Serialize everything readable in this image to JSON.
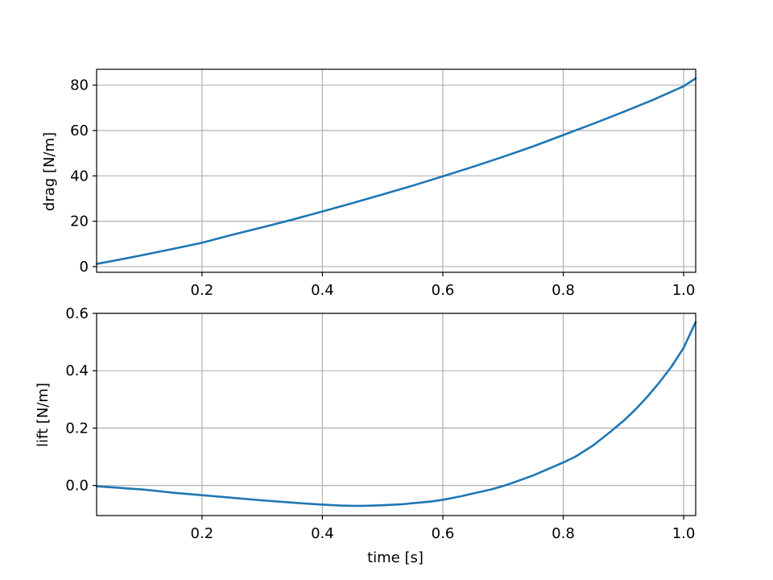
{
  "chart_data": [
    {
      "type": "line",
      "title": "",
      "xlabel": "",
      "ylabel": "drag [N/m]",
      "xlim": [
        0.025,
        1.02
      ],
      "ylim": [
        -2.5,
        87
      ],
      "grid": true,
      "xticks": [
        0.2,
        0.4,
        0.6,
        0.8,
        1.0
      ],
      "xtick_labels": [
        "0.2",
        "0.4",
        "0.6",
        "0.8",
        "1.0"
      ],
      "yticks": [
        0,
        20,
        40,
        60,
        80
      ],
      "ytick_labels": [
        "0",
        "20",
        "40",
        "60",
        "80"
      ],
      "series": [
        {
          "color": "#1f77b4",
          "x": [
            0.025,
            0.05,
            0.1,
            0.15,
            0.2,
            0.25,
            0.3,
            0.35,
            0.4,
            0.45,
            0.5,
            0.55,
            0.6,
            0.65,
            0.7,
            0.75,
            0.8,
            0.85,
            0.9,
            0.95,
            1.0,
            1.02
          ],
          "y": [
            1.2,
            2.4,
            5.0,
            7.7,
            10.5,
            14.0,
            17.3,
            20.7,
            24.3,
            28.0,
            31.8,
            35.7,
            39.8,
            44.0,
            48.4,
            53.0,
            58.0,
            63.0,
            68.2,
            73.6,
            79.5,
            83.0
          ]
        }
      ]
    },
    {
      "type": "line",
      "title": "",
      "xlabel": "time [s]",
      "ylabel": "lift [N/m]",
      "xlim": [
        0.025,
        1.02
      ],
      "ylim": [
        -0.105,
        0.6
      ],
      "grid": true,
      "xticks": [
        0.2,
        0.4,
        0.6,
        0.8,
        1.0
      ],
      "xtick_labels": [
        "0.2",
        "0.4",
        "0.6",
        "0.8",
        "1.0"
      ],
      "yticks": [
        0.0,
        0.2,
        0.4,
        0.6
      ],
      "ytick_labels": [
        "0.0",
        "0.2",
        "0.4",
        "0.6"
      ],
      "series": [
        {
          "color": "#1f77b4",
          "x": [
            0.025,
            0.04,
            0.06,
            0.08,
            0.1,
            0.12,
            0.15,
            0.2,
            0.25,
            0.3,
            0.35,
            0.4,
            0.43,
            0.45,
            0.47,
            0.5,
            0.53,
            0.55,
            0.58,
            0.6,
            0.63,
            0.65,
            0.68,
            0.7,
            0.72,
            0.75,
            0.78,
            0.8,
            0.82,
            0.85,
            0.88,
            0.9,
            0.92,
            0.94,
            0.96,
            0.98,
            1.0,
            1.02
          ],
          "y": [
            -0.003,
            -0.005,
            -0.008,
            -0.011,
            -0.014,
            -0.018,
            -0.025,
            -0.034,
            -0.043,
            -0.052,
            -0.06,
            -0.067,
            -0.07,
            -0.071,
            -0.071,
            -0.069,
            -0.066,
            -0.062,
            -0.056,
            -0.05,
            -0.038,
            -0.028,
            -0.014,
            -0.002,
            0.012,
            0.035,
            0.062,
            0.08,
            0.1,
            0.14,
            0.19,
            0.225,
            0.265,
            0.31,
            0.36,
            0.415,
            0.48,
            0.57
          ]
        }
      ]
    }
  ]
}
